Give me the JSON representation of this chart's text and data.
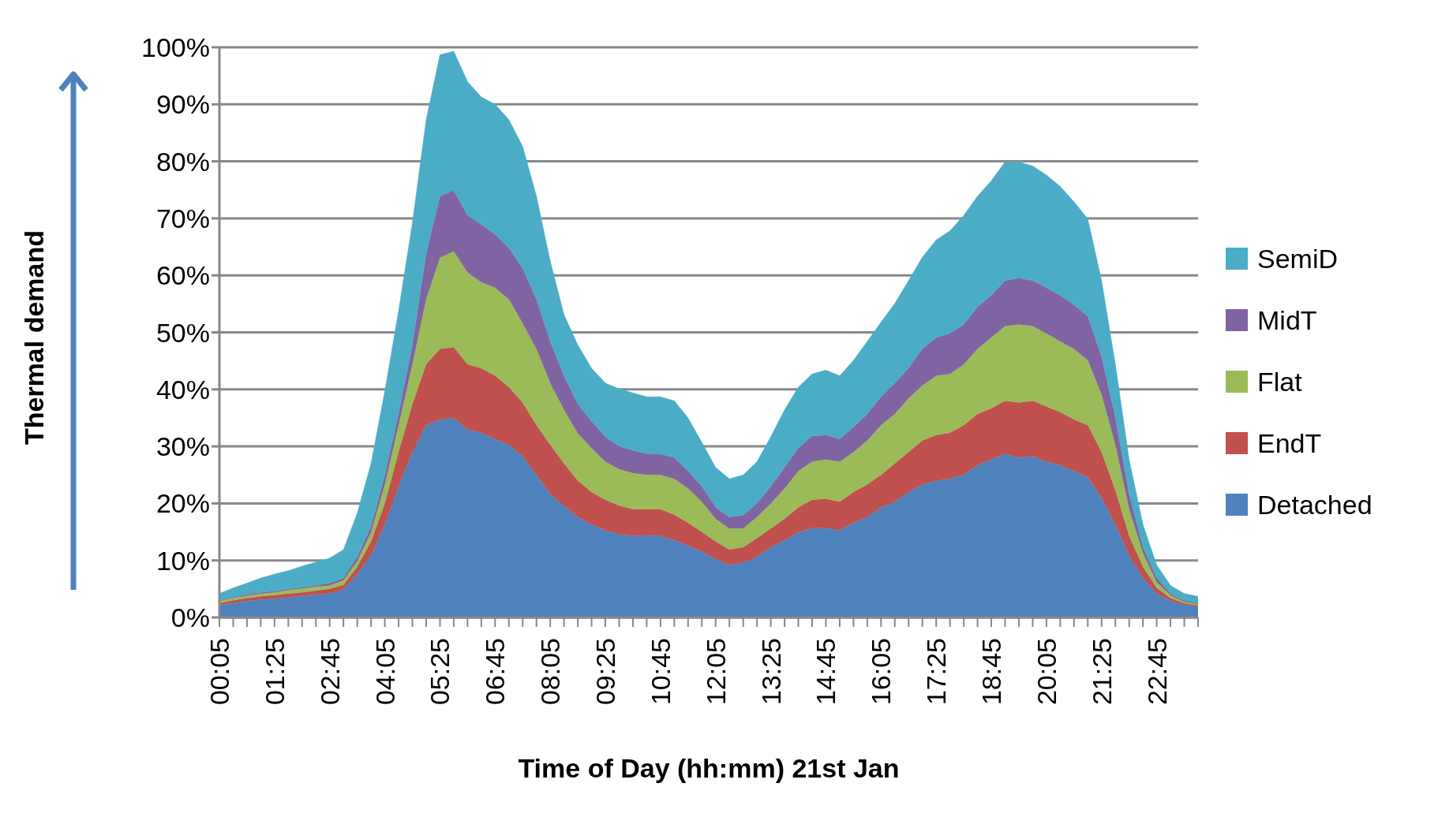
{
  "chart_data": {
    "type": "area",
    "stacked": true,
    "xlabel": "Time of Day (hh:mm) 21st Jan",
    "ylabel": "Thermal demand",
    "categories": [
      "00:05",
      null,
      null,
      null,
      "01:25",
      null,
      null,
      null,
      "02:45",
      null,
      null,
      null,
      "04:05",
      null,
      null,
      null,
      "05:25",
      null,
      null,
      null,
      "06:45",
      null,
      null,
      null,
      "08:05",
      null,
      null,
      null,
      "09:25",
      null,
      null,
      null,
      "10:45",
      null,
      null,
      null,
      "12:05",
      null,
      null,
      null,
      "13:25",
      null,
      null,
      null,
      "14:45",
      null,
      null,
      null,
      "16:05",
      null,
      null,
      null,
      "17:25",
      null,
      null,
      null,
      "18:45",
      null,
      null,
      null,
      "20:05",
      null,
      null,
      null,
      "21:25",
      null,
      null,
      null,
      "22:45",
      null,
      null,
      null
    ],
    "ylim": [
      0,
      100
    ],
    "yticks": [
      {
        "value": 0,
        "label": "0%"
      },
      {
        "value": 10,
        "label": "10%"
      },
      {
        "value": 20,
        "label": "20%"
      },
      {
        "value": 30,
        "label": "30%"
      },
      {
        "value": 40,
        "label": "40%"
      },
      {
        "value": 50,
        "label": "50%"
      },
      {
        "value": 60,
        "label": "60%"
      },
      {
        "value": 70,
        "label": "70%"
      },
      {
        "value": 80,
        "label": "80%"
      },
      {
        "value": 90,
        "label": "90%"
      },
      {
        "value": 100,
        "label": "100%"
      }
    ],
    "grid": "y",
    "legend": "right",
    "series": [
      {
        "name": "Detached",
        "color": "#4f81bd",
        "values": [
          2.2,
          2.5,
          2.9,
          3.1,
          3.3,
          3.5,
          3.8,
          4.0,
          4.2,
          4.9,
          7.6,
          10.9,
          16.3,
          23.0,
          29.0,
          33.7,
          34.7,
          35.0,
          33.0,
          32.4,
          31.3,
          30.3,
          28.3,
          25.0,
          21.6,
          19.6,
          17.6,
          16.3,
          15.3,
          14.6,
          14.3,
          14.4,
          14.3,
          13.6,
          12.6,
          11.6,
          10.2,
          9.2,
          9.6,
          10.6,
          12.3,
          13.6,
          14.9,
          15.7,
          15.7,
          15.3,
          16.6,
          17.6,
          19.3,
          20.3,
          22.0,
          23.3,
          24.0,
          24.3,
          25.0,
          26.7,
          27.7,
          28.7,
          28.0,
          28.3,
          27.3,
          26.7,
          25.7,
          24.6,
          21.0,
          16.3,
          10.9,
          6.9,
          4.2,
          2.9,
          2.2,
          1.9
        ]
      },
      {
        "name": "EndT",
        "color": "#c0504d",
        "values": [
          0.3,
          0.5,
          0.5,
          0.6,
          0.6,
          0.7,
          0.6,
          0.7,
          0.8,
          0.8,
          1.3,
          2.4,
          3.7,
          6.0,
          8.4,
          10.7,
          12.4,
          12.4,
          11.4,
          11.3,
          11.1,
          10.1,
          9.4,
          8.7,
          8.7,
          7.4,
          6.4,
          5.7,
          5.3,
          5.0,
          4.7,
          4.6,
          4.7,
          4.4,
          4.0,
          3.4,
          3.1,
          2.7,
          2.7,
          3.3,
          3.3,
          3.7,
          4.4,
          4.9,
          5.1,
          5.0,
          5.4,
          5.7,
          5.7,
          6.7,
          7.0,
          7.7,
          8.0,
          8.1,
          8.7,
          9.0,
          9.0,
          9.3,
          9.7,
          9.7,
          9.7,
          9.3,
          9.0,
          9.1,
          8.0,
          6.0,
          3.4,
          2.0,
          1.0,
          0.5,
          0.3,
          0.2
        ]
      },
      {
        "name": "Flat",
        "color": "#9bbb59",
        "values": [
          0.4,
          0.4,
          0.4,
          0.5,
          0.5,
          0.6,
          0.7,
          0.7,
          0.6,
          0.8,
          1.0,
          1.6,
          3.3,
          4.7,
          7.0,
          11.4,
          16.0,
          16.8,
          16.1,
          15.1,
          15.4,
          15.4,
          13.9,
          13.4,
          10.8,
          9.4,
          8.3,
          7.7,
          6.7,
          6.4,
          6.3,
          6.0,
          6.0,
          6.3,
          6.0,
          5.3,
          4.0,
          3.7,
          3.3,
          3.7,
          4.4,
          5.3,
          6.4,
          6.7,
          6.9,
          7.0,
          7.0,
          7.7,
          8.7,
          8.7,
          9.4,
          9.7,
          10.4,
          10.3,
          10.7,
          11.4,
          12.4,
          13.1,
          13.7,
          13.1,
          12.8,
          12.4,
          12.4,
          11.4,
          10.1,
          8.0,
          4.7,
          2.4,
          1.0,
          0.5,
          0.2,
          0.2
        ]
      },
      {
        "name": "MidT",
        "color": "#8064a2",
        "values": [
          0.1,
          0.1,
          0.2,
          0.2,
          0.2,
          0.2,
          0.2,
          0.2,
          0.4,
          0.4,
          0.7,
          1.0,
          1.7,
          2.0,
          3.4,
          8.0,
          10.8,
          10.7,
          10.0,
          10.1,
          9.4,
          9.0,
          9.6,
          8.7,
          7.3,
          6.0,
          5.1,
          4.7,
          4.4,
          4.0,
          4.0,
          3.7,
          3.7,
          3.7,
          3.1,
          2.7,
          2.0,
          2.0,
          2.3,
          2.4,
          3.0,
          3.7,
          4.0,
          4.5,
          4.3,
          4.0,
          4.4,
          4.7,
          5.0,
          5.4,
          5.3,
          6.4,
          6.7,
          7.1,
          7.0,
          7.4,
          7.4,
          8.0,
          8.1,
          8.0,
          8.0,
          8.1,
          7.7,
          7.7,
          6.6,
          4.7,
          2.6,
          1.0,
          0.7,
          0.3,
          0.2,
          0.2
        ]
      },
      {
        "name": "SemiD",
        "color": "#4bacc6",
        "values": [
          1.2,
          1.7,
          2.0,
          2.5,
          3.0,
          3.2,
          3.7,
          4.1,
          4.4,
          5.0,
          7.7,
          11.1,
          14.7,
          18.1,
          21.4,
          23.5,
          24.8,
          24.4,
          23.5,
          22.4,
          22.8,
          22.5,
          21.4,
          18.1,
          14.1,
          10.7,
          10.4,
          9.3,
          9.4,
          10.1,
          10.1,
          10.0,
          10.0,
          10.0,
          9.3,
          7.7,
          7.0,
          6.7,
          7.1,
          7.3,
          8.7,
          10.1,
          10.7,
          10.9,
          11.4,
          11.1,
          11.7,
          12.7,
          13.1,
          14.0,
          15.4,
          16.1,
          17.1,
          18.0,
          19.1,
          19.4,
          20.1,
          20.8,
          20.4,
          20.1,
          19.8,
          19.1,
          18.1,
          17.1,
          13.4,
          9.4,
          6.1,
          4.0,
          2.3,
          1.4,
          1.3,
          1.2
        ]
      }
    ]
  }
}
